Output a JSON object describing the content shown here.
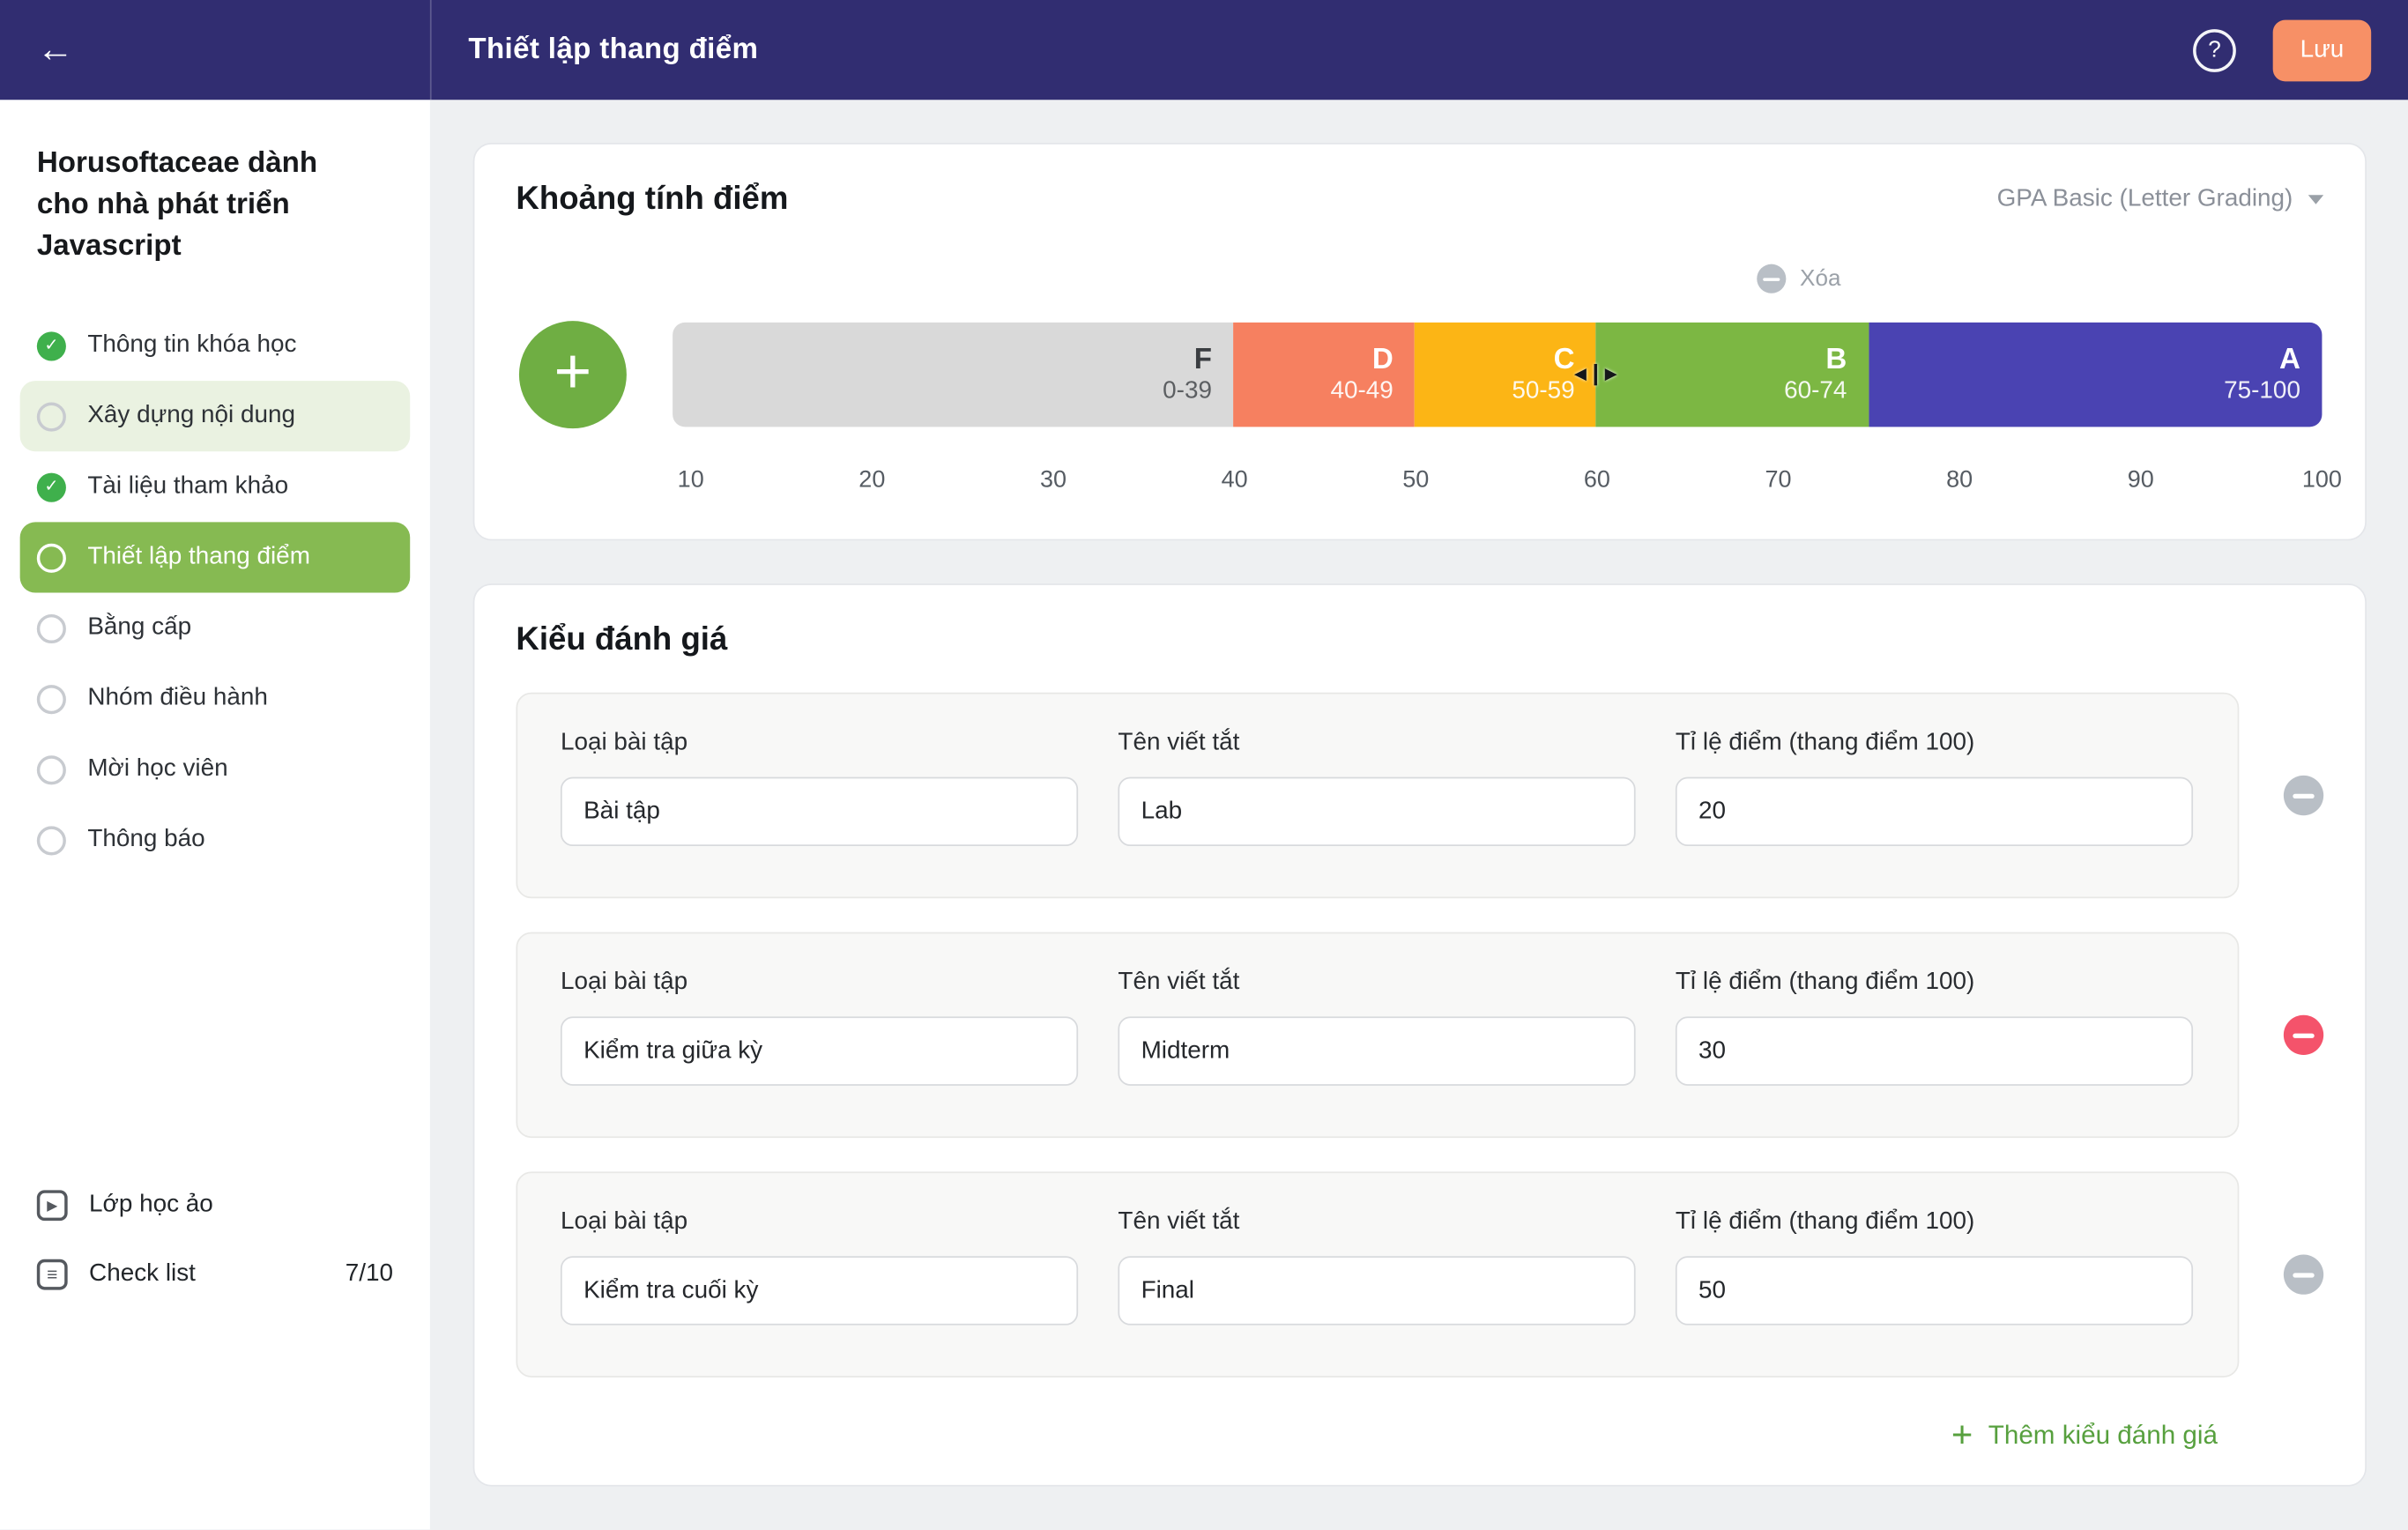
{
  "colors": {
    "header_bg": "#312d71",
    "save_btn": "#f79066",
    "accent_green": "#6fae43",
    "active_item": "#86ba52",
    "highlight_item": "#eaf2e1",
    "check_green": "#3fb04c",
    "add_link": "#57a03e",
    "muted_circle": "#b9bfc6"
  },
  "header": {
    "title": "Thiết lập thang điểm",
    "help_label": "?",
    "save_label": "Lưu",
    "back_icon": "←"
  },
  "sidebar": {
    "course_title": "Horusoftaceae dành cho nhà phát triển Javascript",
    "items": [
      {
        "label": "Thông tin khóa học",
        "state": "done"
      },
      {
        "label": "Xây dựng nội dung",
        "state": "highlight"
      },
      {
        "label": "Tài liệu tham khảo",
        "state": "done"
      },
      {
        "label": "Thiết lập thang điểm",
        "state": "active"
      },
      {
        "label": "Bằng cấp",
        "state": "todo"
      },
      {
        "label": "Nhóm điều hành",
        "state": "todo"
      },
      {
        "label": "Mời học viên",
        "state": "todo"
      },
      {
        "label": "Thông báo",
        "state": "todo"
      }
    ],
    "footer": {
      "virtual_class_label": "Lớp học ảo",
      "checklist_label": "Check list",
      "checklist_progress": "7/10"
    }
  },
  "grade_range": {
    "title": "Khoảng tính điểm",
    "preset": "GPA Basic (Letter Grading)",
    "delete_label": "Xóa",
    "segments": [
      {
        "grade": "F",
        "range": "0-39",
        "from": 0,
        "to": 39,
        "color": "#d9d9d9",
        "text_color": "#3a3d41"
      },
      {
        "grade": "D",
        "range": "40-49",
        "from": 40,
        "to": 49,
        "color": "#f68060",
        "text_color": "#ffffff"
      },
      {
        "grade": "C",
        "range": "50-59",
        "from": 50,
        "to": 59,
        "color": "#fcb515",
        "text_color": "#ffffff"
      },
      {
        "grade": "B",
        "range": "60-74",
        "from": 60,
        "to": 74,
        "color": "#7cb743",
        "text_color": "#ffffff"
      },
      {
        "grade": "A",
        "range": "75-100",
        "from": 75,
        "to": 100,
        "color": "#4a43b2",
        "text_color": "#ffffff"
      }
    ],
    "axis_ticks": [
      "10",
      "20",
      "30",
      "40",
      "50",
      "60",
      "70",
      "80",
      "90",
      "100"
    ]
  },
  "assessment": {
    "title": "Kiểu đánh giá",
    "col_labels": {
      "type": "Loại bài tập",
      "abbr": "Tên viết tắt",
      "ratio": "Tỉ lệ điểm (thang điểm 100)"
    },
    "rows": [
      {
        "type_value": "Bài tập",
        "abbr_value": "Lab",
        "ratio_value": "20",
        "remove_color": "#b9bfc6"
      },
      {
        "type_value": "Kiểm tra giữa kỳ",
        "abbr_value": "Midterm",
        "ratio_value": "30",
        "remove_color": "#f4536b"
      },
      {
        "type_value": "Kiểm tra cuối kỳ",
        "abbr_value": "Final",
        "ratio_value": "50",
        "remove_color": "#b9bfc6"
      }
    ],
    "add_label": "Thêm kiểu đánh giá"
  }
}
